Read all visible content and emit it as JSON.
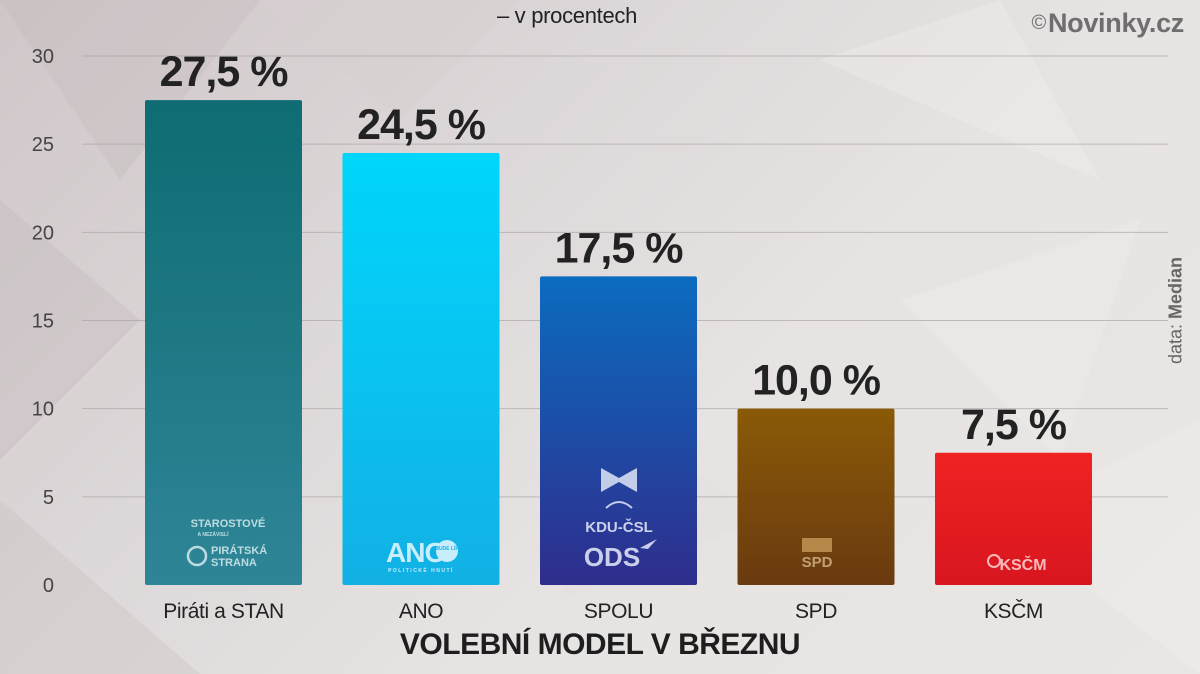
{
  "subtitle": "– v procentech",
  "brand": {
    "copyright": "©",
    "name": "Novinky.cz"
  },
  "source": {
    "prefix": "data: ",
    "name": "Median"
  },
  "x_title": "VOLEBNÍ MODEL V BŘEZNU",
  "colors": {
    "grid": "#a9a2a3",
    "bars": [
      "#1f7a86",
      "#00c4ee",
      "#2b4aa4",
      "#7a4a0c",
      "#e01b22"
    ]
  },
  "logos": {
    "pirati_stan": {
      "line1": "STAROSTOVÉ",
      "line2": "A NEZÁVISLÍ",
      "line3": "PIRÁTSKÁ",
      "line4": "STRANA"
    },
    "ano": {
      "main": "ANO",
      "badge": "BUDE LÍP",
      "sub": "POLITICKÉ HNUTÍ"
    },
    "spolu": {
      "kdu": "KDU-ČSL",
      "ods": "ODS"
    },
    "spd": {
      "text": "SPD"
    },
    "kscm": {
      "text": "KSČM"
    }
  },
  "chart_data": {
    "type": "bar",
    "title": "",
    "subtitle": "– v procentech",
    "xlabel": "VOLEBNÍ MODEL V BŘEZNU",
    "ylabel": "",
    "categories": [
      "Piráti a STAN",
      "ANO",
      "SPOLU",
      "SPD",
      "KSČM"
    ],
    "values": [
      27.5,
      24.5,
      17.5,
      10.0,
      7.5
    ],
    "value_labels": [
      "27,5 %",
      "24,5 %",
      "17,5 %",
      "10,0 %",
      "7,5 %"
    ],
    "yticks": [
      "0",
      "5",
      "10",
      "15",
      "20",
      "25",
      "30"
    ],
    "ylim": [
      0,
      30
    ],
    "grid": true,
    "legend": "none"
  }
}
